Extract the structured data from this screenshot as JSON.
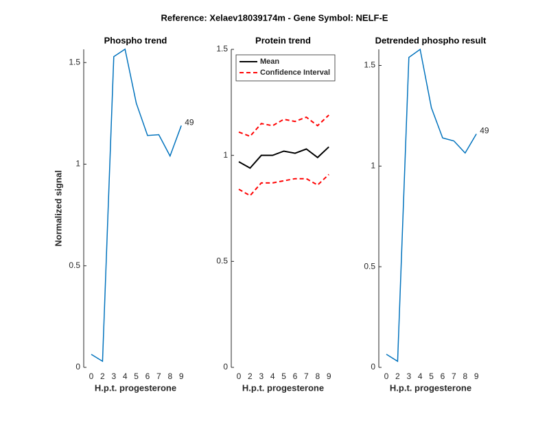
{
  "title": "Reference:  Xelaev18039174m - Gene Symbol:  NELF-E",
  "chart_data": [
    {
      "type": "line",
      "title": "Phospho trend",
      "y_label": "Normalized signal",
      "x_label": "H.p.t. progesterone",
      "categories": [
        "0",
        "2",
        "3",
        "4",
        "5",
        "6",
        "7",
        "8",
        "9"
      ],
      "series": [
        {
          "name": null,
          "color": "#0072bd",
          "values": [
            0.064,
            0.03,
            1.529,
            1.566,
            1.3,
            1.141,
            1.145,
            1.04,
            1.19
          ]
        }
      ],
      "end_label": "49",
      "ylim": [
        0,
        1.565
      ],
      "yticks": [
        0,
        0.5,
        1,
        1.5
      ]
    },
    {
      "type": "ci",
      "title": "Protein trend",
      "x_label": "H.p.t. progesterone",
      "categories": [
        "0",
        "2",
        "3",
        "4",
        "5",
        "6",
        "7",
        "8",
        "9"
      ],
      "series": [
        {
          "name": "Mean",
          "color": "#000000",
          "values": [
            0.97,
            0.94,
            1.0,
            1.0,
            1.02,
            1.01,
            1.03,
            0.99,
            1.04
          ]
        },
        {
          "name": "Confidence Interval",
          "color": "#ff0000",
          "upper": [
            1.11,
            1.09,
            1.15,
            1.14,
            1.17,
            1.16,
            1.18,
            1.14,
            1.19
          ],
          "lower": [
            0.84,
            0.81,
            0.87,
            0.87,
            0.88,
            0.89,
            0.89,
            0.86,
            0.91
          ]
        }
      ],
      "ylim": [
        0,
        1.5
      ],
      "yticks": [
        0,
        0.5,
        1,
        1.5
      ]
    },
    {
      "type": "line",
      "title": "Detrended phospho result",
      "x_label": "H.p.t. progesterone",
      "categories": [
        "0",
        "2",
        "3",
        "4",
        "5",
        "6",
        "7",
        "8",
        "9"
      ],
      "series": [
        {
          "name": null,
          "color": "#0072bd",
          "values": [
            0.065,
            0.03,
            1.54,
            1.58,
            1.29,
            1.14,
            1.125,
            1.065,
            1.16
          ]
        }
      ],
      "end_label": "49",
      "ylim": [
        0,
        1.58
      ],
      "yticks": [
        0,
        0.5,
        1,
        1.5
      ]
    }
  ]
}
